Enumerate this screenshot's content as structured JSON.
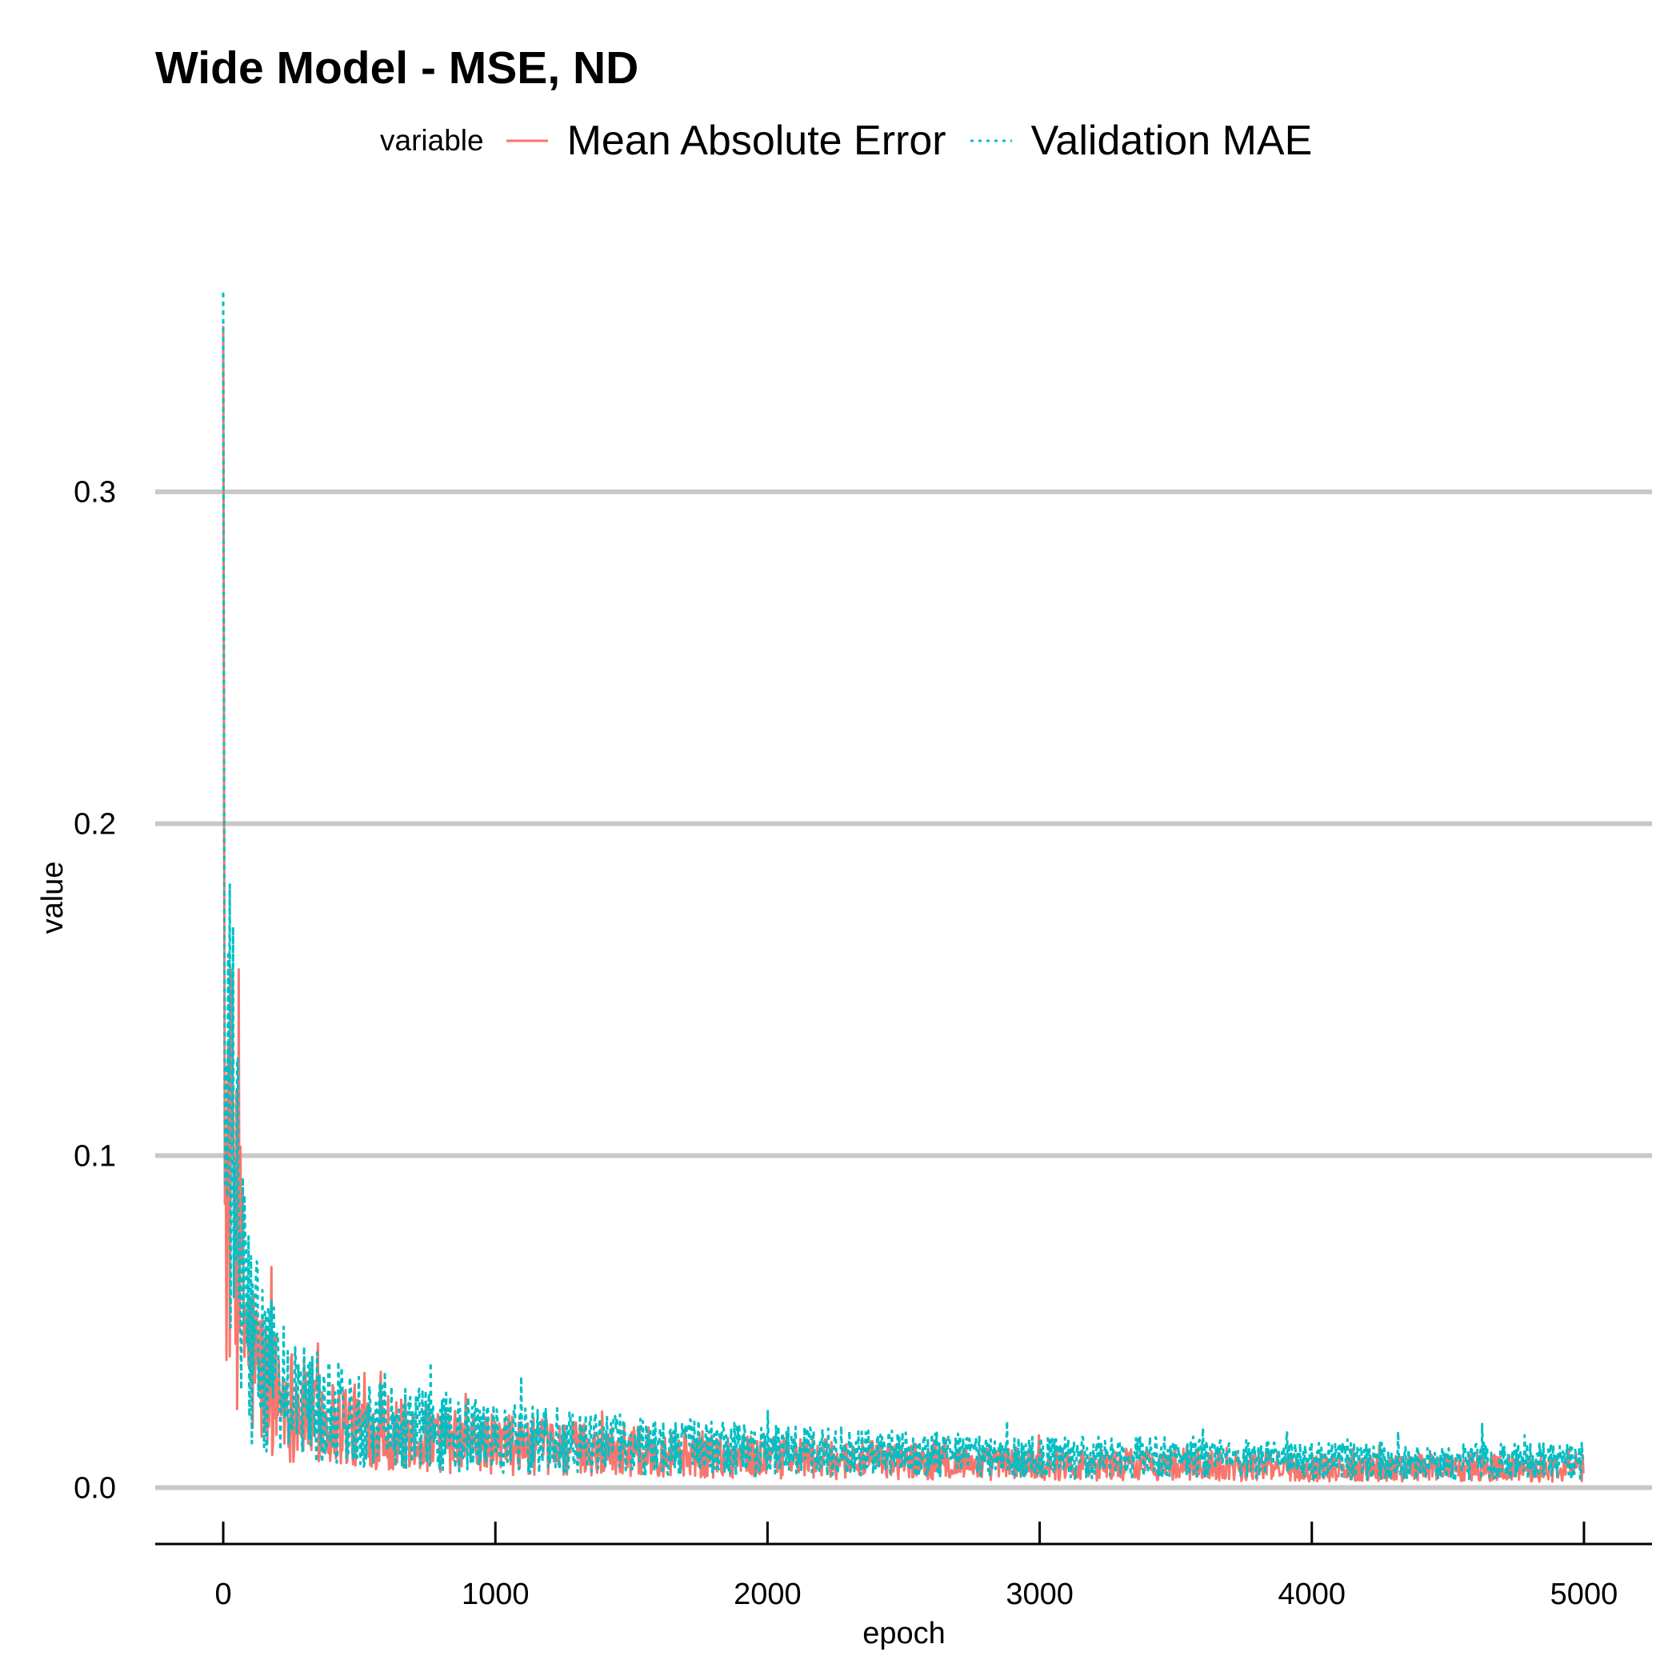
{
  "chart_data": {
    "type": "line",
    "title": "Wide Model - MSE, ND",
    "xlabel": "epoch",
    "ylabel": "value",
    "xlim": [
      -250,
      5250
    ],
    "ylim": [
      -0.017,
      0.365
    ],
    "x_ticks": [
      0,
      1000,
      2000,
      3000,
      4000,
      5000
    ],
    "y_ticks": [
      0.0,
      0.1,
      0.2,
      0.3
    ],
    "x_tick_labels": [
      "0",
      "1000",
      "2000",
      "3000",
      "4000",
      "5000"
    ],
    "y_tick_labels": [
      "0.0",
      "0.1",
      "0.2",
      "0.3"
    ],
    "grid": "horizontal major",
    "legend": {
      "title": "variable",
      "position": "top"
    },
    "series": [
      {
        "name": "Mean Absolute Error",
        "color": "#F8766D",
        "linetype": "solid",
        "x": [
          0,
          2,
          5,
          10,
          20,
          40,
          60,
          80,
          100,
          150,
          200,
          300,
          400,
          500,
          600,
          800,
          1000,
          1250,
          1500,
          2000,
          2500,
          3000,
          3500,
          4000,
          4500,
          5000
        ],
        "y": [
          0.35,
          0.25,
          0.12,
          0.08,
          0.1,
          0.09,
          0.065,
          0.05,
          0.04,
          0.032,
          0.028,
          0.023,
          0.02,
          0.018,
          0.017,
          0.014,
          0.013,
          0.012,
          0.011,
          0.009,
          0.008,
          0.007,
          0.007,
          0.006,
          0.006,
          0.006
        ]
      },
      {
        "name": "Validation MAE",
        "color": "#00BFC4",
        "linetype": "dotted",
        "x": [
          0,
          2,
          5,
          10,
          20,
          40,
          60,
          80,
          100,
          150,
          200,
          300,
          400,
          500,
          600,
          800,
          1000,
          1250,
          1500,
          2000,
          2500,
          3000,
          3500,
          4000,
          4500,
          5000
        ],
        "y": [
          0.36,
          0.26,
          0.13,
          0.09,
          0.11,
          0.1,
          0.07,
          0.055,
          0.045,
          0.036,
          0.031,
          0.026,
          0.023,
          0.021,
          0.02,
          0.017,
          0.015,
          0.014,
          0.013,
          0.011,
          0.01,
          0.009,
          0.009,
          0.008,
          0.008,
          0.008
        ]
      }
    ]
  }
}
